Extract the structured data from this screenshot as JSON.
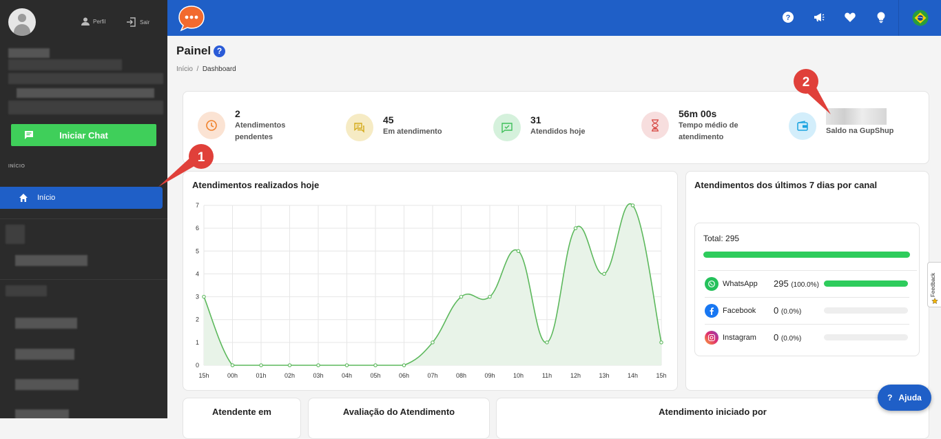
{
  "sidebar": {
    "profile_label": "Perfil",
    "logout_label": "Sair",
    "start_chat_label": "Iniciar Chat",
    "section_label": "INÍCIO",
    "nav_active_label": "Início"
  },
  "header": {
    "icons": [
      "help-icon",
      "megaphone-icon",
      "heart-icon",
      "lightbulb-icon",
      "brazil-flag-icon"
    ]
  },
  "page": {
    "title": "Painel",
    "breadcrumb_home": "Início",
    "breadcrumb_sep": "/",
    "breadcrumb_current": "Dashboard"
  },
  "stats": [
    {
      "value": "2",
      "label_line1": "Atendimentos",
      "label_line2": "pendentes",
      "color": "#f0812a"
    },
    {
      "value": "45",
      "label_line1": "Em atendimento",
      "label_line2": "",
      "color": "#d4aa1a"
    },
    {
      "value": "31",
      "label_line1": "Atendidos hoje",
      "label_line2": "",
      "color": "#3fbf5a"
    },
    {
      "value": "56m 00s",
      "label_line1": "Tempo médio de",
      "label_line2": "atendimento",
      "color": "#d9534f"
    },
    {
      "value": "",
      "label_line1": "Saldo na GupShup",
      "label_line2": "",
      "color": "#1aa3e0"
    }
  ],
  "today_chart": {
    "title": "Atendimentos realizados hoje"
  },
  "chart_data": {
    "type": "area",
    "title": "Atendimentos realizados hoje",
    "categories": [
      "15h",
      "00h",
      "01h",
      "02h",
      "03h",
      "04h",
      "05h",
      "06h",
      "07h",
      "08h",
      "09h",
      "10h",
      "11h",
      "12h",
      "13h",
      "14h",
      "15h"
    ],
    "values": [
      3,
      0,
      0,
      0,
      0,
      0,
      0,
      0,
      1,
      3,
      3,
      5,
      1,
      6,
      4,
      7,
      1
    ],
    "yticks": [
      "0",
      "1",
      "2",
      "3",
      "4",
      "5",
      "6",
      "7"
    ],
    "ylim": [
      0,
      7
    ],
    "grid": true,
    "line_color": "#5cb85c",
    "fill_color": "#e8f3e8"
  },
  "channels_card": {
    "title": "Atendimentos dos últimos 7 dias por canal",
    "total_label": "Total: 295",
    "total_fraction": 1.0,
    "channels": [
      {
        "name": "WhatsApp",
        "value": "295",
        "pct": "(100.0%)",
        "fraction": 1.0,
        "icon": "whatsapp-icon"
      },
      {
        "name": "Facebook",
        "value": "0",
        "pct": "(0.0%)",
        "fraction": 0.0,
        "icon": "facebook-icon"
      },
      {
        "name": "Instagram",
        "value": "0",
        "pct": "(0.0%)",
        "fraction": 0.0,
        "icon": "instagram-icon"
      }
    ]
  },
  "bottom_cards": {
    "card1_title": "Atendente em",
    "card2_title": "Avaliação do Atendimento",
    "card3_title": "Atendimento iniciado por"
  },
  "feedback_label": "Feedback",
  "help_button_label": "Ajuda",
  "annotations": {
    "marker1": "1",
    "marker2": "2",
    "color": "#e0403a"
  }
}
